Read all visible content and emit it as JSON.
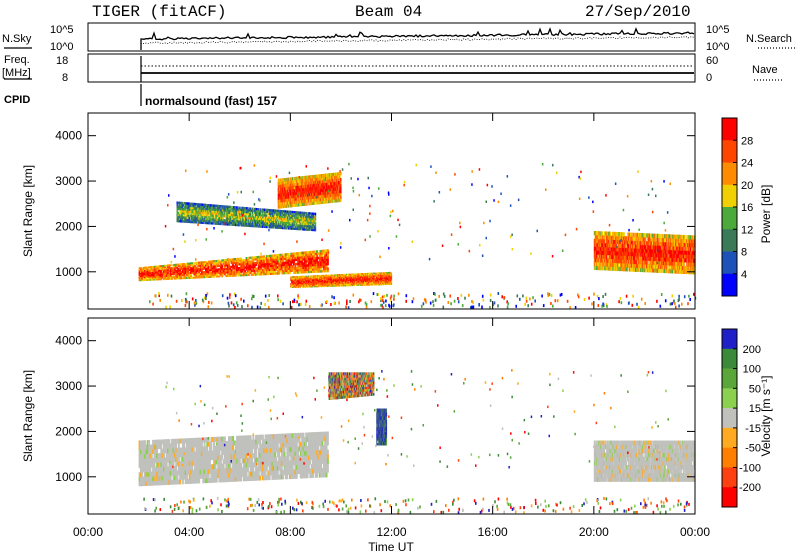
{
  "header": {
    "radar": "TIGER (fitACF)",
    "beam": "Beam 04",
    "date": "27/Sep/2010"
  },
  "panels": {
    "nsky": {
      "label": "N.Sky",
      "tick_hi": "10^5",
      "tick_lo": "10^0",
      "right_hi": "10^5",
      "right_lo": "10^0",
      "right_label": "N.Search"
    },
    "freq": {
      "label_top": "Freq.",
      "label_bot": "[MHz]",
      "tick_hi": "18",
      "tick_lo": "8",
      "right_hi": "60",
      "right_lo": "0",
      "right_label": "Nave"
    },
    "cpid": {
      "label": "CPID",
      "value": "normalsound (fast) 157"
    }
  },
  "chart_data": {
    "type": "heatmap",
    "x_axis": {
      "label": "Time UT",
      "ticks": [
        "00:00",
        "04:00",
        "08:00",
        "12:00",
        "16:00",
        "20:00",
        "00:00"
      ],
      "range_hours": [
        0,
        24
      ]
    },
    "y_axis": {
      "label": "Slant Range [km]",
      "ticks": [
        1000,
        2000,
        3000,
        4000
      ],
      "range_km": [
        180,
        4500
      ]
    },
    "panels": [
      {
        "name": "power",
        "colorbar_label": "Power [dB]",
        "colorbar_ticks": [
          "4",
          "8",
          "12",
          "16",
          "20",
          "24",
          "28"
        ],
        "colors": [
          "#0000ff",
          "#1d52b8",
          "#3a7a58",
          "#4caa3a",
          "#f0d000",
          "#ff8c00",
          "#ff4500",
          "#ff0000"
        ],
        "echo_regions": [
          {
            "t": [
              2.0,
              9.5
            ],
            "r1": [
              1100,
              1500
            ],
            "r2": [
              800,
              1000
            ],
            "level": "high"
          },
          {
            "t": [
              3.5,
              9.0
            ],
            "r1": [
              2550,
              2300
            ],
            "r2": [
              2100,
              1900
            ],
            "level": "medium"
          },
          {
            "t": [
              7.5,
              10.0
            ],
            "r1": [
              3050,
              3200
            ],
            "r2": [
              2400,
              2550
            ],
            "level": "high"
          },
          {
            "t": [
              8.0,
              12.0
            ],
            "r1": [
              900,
              1000
            ],
            "r2": [
              650,
              720
            ],
            "level": "high"
          },
          {
            "t": [
              20.0,
              24.0
            ],
            "r1": [
              1900,
              1800
            ],
            "r2": [
              1050,
              950
            ],
            "level": "high"
          }
        ]
      },
      {
        "name": "velocity",
        "colorbar_label": "Velocity [m s⁻¹]",
        "colorbar_ticks": [
          "200",
          "100",
          "50",
          "15",
          "-15",
          "-50",
          "-100",
          "-200"
        ],
        "colors": [
          "#2020c8",
          "#3a8a3a",
          "#5aa63a",
          "#8cd050",
          "#c0c0bc",
          "#ffaa20",
          "#ff8000",
          "#ff4010",
          "#ff0000"
        ],
        "echo_regions": [
          {
            "t": [
              2.0,
              9.5
            ],
            "r1": [
              1800,
              2000
            ],
            "r2": [
              800,
              1000
            ],
            "level": "near-zero"
          },
          {
            "t": [
              9.5,
              11.3
            ],
            "r1": [
              3300,
              3300
            ],
            "r2": [
              2700,
              2800
            ],
            "level": "mixed-strong"
          },
          {
            "t": [
              11.4,
              11.8
            ],
            "r1": [
              2500,
              2500
            ],
            "r2": [
              1700,
              1700
            ],
            "level": "positive"
          },
          {
            "t": [
              20.0,
              24.0
            ],
            "r1": [
              1800,
              1800
            ],
            "r2": [
              900,
              900
            ],
            "level": "near-zero"
          }
        ]
      }
    ]
  }
}
